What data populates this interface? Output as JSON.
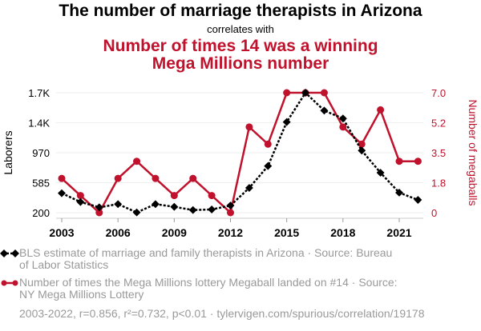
{
  "chart_data": {
    "type": "line",
    "title": "The number of marriage therapists in Arizona",
    "subtitle": "correlates with",
    "title2_line1": "Number of times 14 was a winning",
    "title2_line2": "Mega Millions number",
    "x": [
      2003,
      2004,
      2005,
      2006,
      2007,
      2008,
      2009,
      2010,
      2011,
      2012,
      2013,
      2014,
      2015,
      2016,
      2017,
      2018,
      2019,
      2020,
      2021,
      2022
    ],
    "xticks": [
      "2003",
      "2006",
      "2009",
      "2012",
      "2015",
      "2018",
      "2021"
    ],
    "ylabel_left": "Laborers",
    "ylabel_right": "Number of megaballs",
    "yticks_left": [
      "200",
      "585",
      "970",
      "1.4K",
      "1.7K"
    ],
    "yticks_right": [
      "0",
      "1.8",
      "3.5",
      "5.2",
      "7.0"
    ],
    "ylim_left": [
      200,
      1740
    ],
    "ylim_right": [
      0,
      7
    ],
    "series": [
      {
        "name": "BLS estimate of marriage and family therapists in Arizona · Source: Bureau of Labor Statistics",
        "axis": "left",
        "color": "#000000",
        "values": [
          450,
          337,
          269,
          310,
          203,
          310,
          275,
          234,
          241,
          292,
          518,
          799,
          1364,
          1740,
          1511,
          1409,
          998,
          713,
          457,
          364
        ]
      },
      {
        "name": "Number of times the Mega Millions lottery Megaball landed on #14 · Source: NY Mega Millions Lottery",
        "axis": "right",
        "color": "#c0122c",
        "values": [
          2,
          1,
          0,
          2,
          3,
          2,
          1,
          2,
          1,
          0,
          5,
          4,
          7,
          7,
          7,
          5,
          4,
          6,
          3,
          3
        ]
      }
    ],
    "legend1_line1": "BLS estimate of marriage and family therapists in Arizona · Source: Bureau",
    "legend1_line2": "of Labor Statistics",
    "legend2_line1": "Number of times the Mega Millions lottery Megaball landed on #14 · Source:",
    "legend2_line2": "NY Mega Millions Lottery",
    "footer": "2003-2022, r=0.856, r²=0.732, p<0.01 · tylervigen.com/spurious/correlation/19178"
  }
}
